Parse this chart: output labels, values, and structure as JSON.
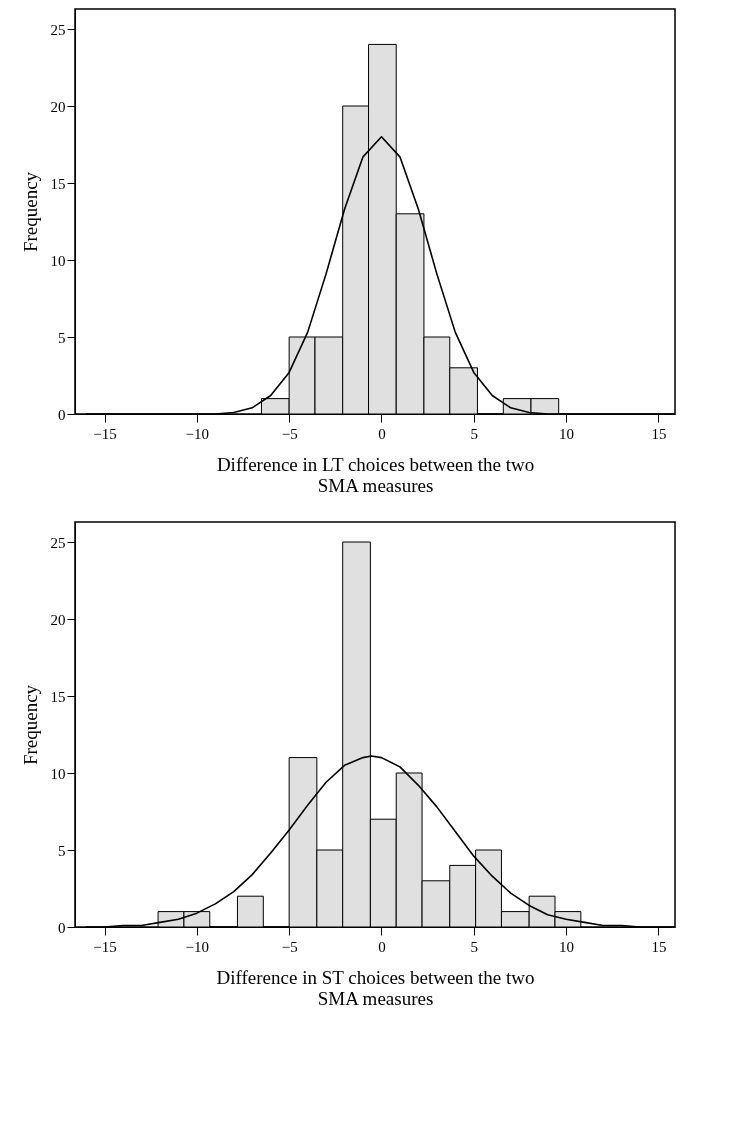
{
  "chart_data": [
    {
      "type": "histogram",
      "xlabel": "Difference in LT choices between the two SMA measures",
      "ylabel": "Frequency",
      "bins": [
        -6.5,
        -5.0,
        -3.6,
        -2.1,
        -0.7,
        0.8,
        2.3,
        3.7,
        5.2,
        6.6,
        8.1,
        9.6
      ],
      "values": [
        1,
        5,
        5,
        20,
        24,
        13,
        5,
        3,
        0,
        1,
        1
      ],
      "color": "#e0e0e0",
      "xlim": [
        -16.6,
        15.9
      ],
      "xticks": [
        -15,
        -10,
        -5,
        0,
        5,
        10,
        15
      ],
      "ylim": [
        0,
        26.3
      ],
      "yticks": [
        0,
        5,
        10,
        15,
        20,
        25
      ],
      "grid": false,
      "series": [
        {
          "type": "line",
          "color": "#000000",
          "x": [
            -16,
            -10,
            -9,
            -8,
            -7,
            -6,
            -5,
            -4,
            -3,
            -2,
            -1,
            0,
            1,
            2,
            3,
            4,
            5,
            6,
            7,
            8,
            9,
            10,
            15.9
          ],
          "values": [
            0,
            0,
            0,
            0.1,
            0.4,
            1.2,
            2.7,
            5.3,
            9.1,
            13.3,
            16.7,
            18,
            16.7,
            13.3,
            9.1,
            5.3,
            2.7,
            1.2,
            0.4,
            0.1,
            0,
            0,
            0
          ]
        }
      ]
    },
    {
      "type": "histogram",
      "xlabel": "Difference in ST choices between the two SMA measures",
      "ylabel": "Frequency",
      "bins": [
        -12.1,
        -10.7,
        -9.3,
        -7.8,
        -6.4,
        -5.0,
        -3.5,
        -2.1,
        -0.6,
        0.8,
        2.2,
        3.7,
        5.1,
        6.5,
        8.0,
        9.4,
        10.8
      ],
      "values": [
        1,
        1,
        0,
        2,
        0,
        11,
        5,
        25,
        7,
        10,
        3,
        4,
        5,
        1,
        2,
        1
      ],
      "color": "#e0e0e0",
      "xlim": [
        -16.6,
        15.9
      ],
      "xticks": [
        -15,
        -10,
        -5,
        0,
        5,
        10,
        15
      ],
      "ylim": [
        0,
        26.3
      ],
      "yticks": [
        0,
        5,
        10,
        15,
        20,
        25
      ],
      "grid": false,
      "series": [
        {
          "type": "line",
          "color": "#000000",
          "x": [
            -16,
            -15,
            -14,
            -13,
            -12,
            -11,
            -10,
            -9,
            -8,
            -7,
            -6,
            -5,
            -4,
            -3,
            -2,
            -1,
            -0.55,
            0,
            1,
            2,
            3,
            4,
            5,
            6,
            7,
            8,
            9,
            10,
            11,
            12,
            13,
            14,
            15,
            15.9
          ],
          "values": [
            0,
            0,
            0.1,
            0.1,
            0.3,
            0.5,
            0.9,
            1.5,
            2.3,
            3.4,
            4.8,
            6.3,
            7.9,
            9.4,
            10.5,
            11.0,
            11.1,
            11.0,
            10.4,
            9.2,
            7.8,
            6.2,
            4.6,
            3.3,
            2.2,
            1.4,
            0.8,
            0.5,
            0.3,
            0.1,
            0.1,
            0,
            0,
            0
          ]
        }
      ]
    }
  ]
}
